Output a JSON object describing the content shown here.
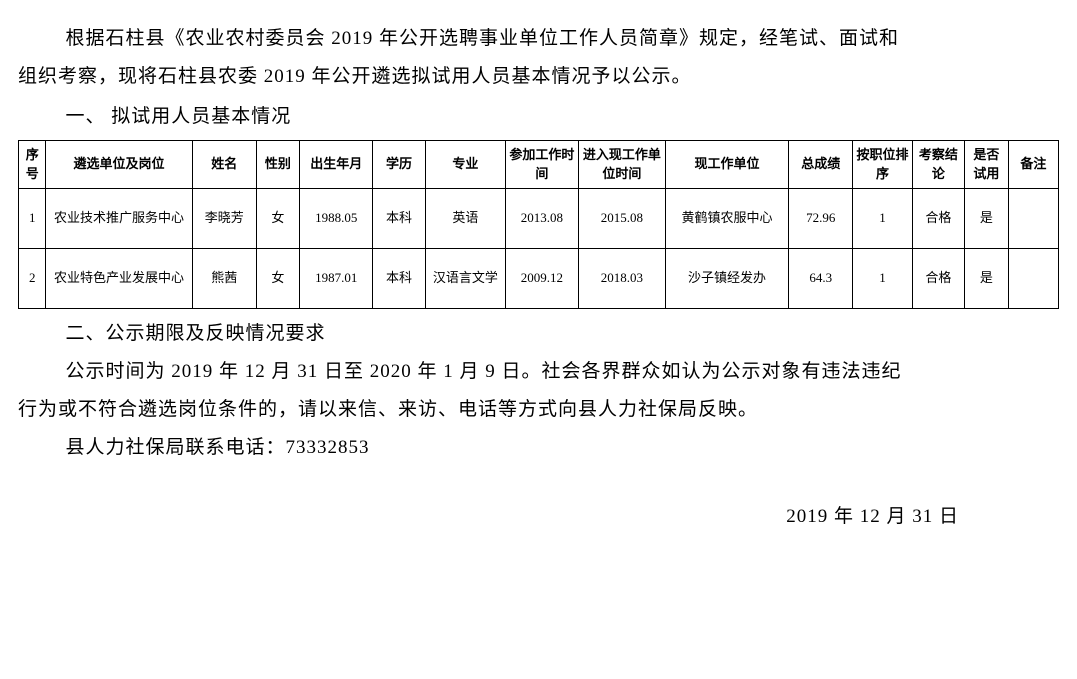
{
  "intro": {
    "line1": "根据石柱县《农业农村委员会 2019 年公开选聘事业单位工作人员简章》规定，经笔试、面试和",
    "line2": "组织考察，现将石柱县农委 2019 年公开遴选拟试用人员基本情况予以公示。"
  },
  "section1": {
    "title": "一、 拟试用人员基本情况"
  },
  "table": {
    "headers": {
      "seq": "序号",
      "unit": "遴选单位及岗位",
      "name": "姓名",
      "gender": "性别",
      "birth": "出生年月",
      "edu": "学历",
      "major": "专业",
      "workdate": "参加工作时间",
      "currentdate": "进入现工作单位时间",
      "currentunit": "现工作单位",
      "score": "总成绩",
      "rank": "按职位排序",
      "review": "考察结论",
      "trial": "是否试用",
      "remark": "备注"
    },
    "rows": [
      {
        "seq": "1",
        "unit": "农业技术推广服务中心",
        "name": "李晓芳",
        "gender": "女",
        "birth": "1988.05",
        "edu": "本科",
        "major": "英语",
        "workdate": "2013.08",
        "currentdate": "2015.08",
        "currentunit": "黄鹤镇农服中心",
        "score": "72.96",
        "rank": "1",
        "review": "合格",
        "trial": "是",
        "remark": ""
      },
      {
        "seq": "2",
        "unit": "农业特色产业发展中心",
        "name": "熊茜",
        "gender": "女",
        "birth": "1987.01",
        "edu": "本科",
        "major": "汉语言文学",
        "workdate": "2009.12",
        "currentdate": "2018.03",
        "currentunit": "沙子镇经发办",
        "score": "64.3",
        "rank": "1",
        "review": "合格",
        "trial": "是",
        "remark": ""
      }
    ]
  },
  "section2": {
    "title": "二、公示期限及反映情况要求",
    "line1": "公示时间为 2019 年 12 月 31 日至 2020 年 1 月 9 日。社会各界群众如认为公示对象有违法违纪",
    "line2": "行为或不符合遴选岗位条件的，请以来信、来访、电话等方式向县人力社保局反映。",
    "line3": "县人力社保局联系电话：73332853"
  },
  "date": "2019 年 12 月 31 日",
  "style": {
    "body_font_size": 19,
    "table_font_size": 13,
    "border_color": "#000000",
    "background": "#ffffff",
    "text_color": "#000000"
  }
}
